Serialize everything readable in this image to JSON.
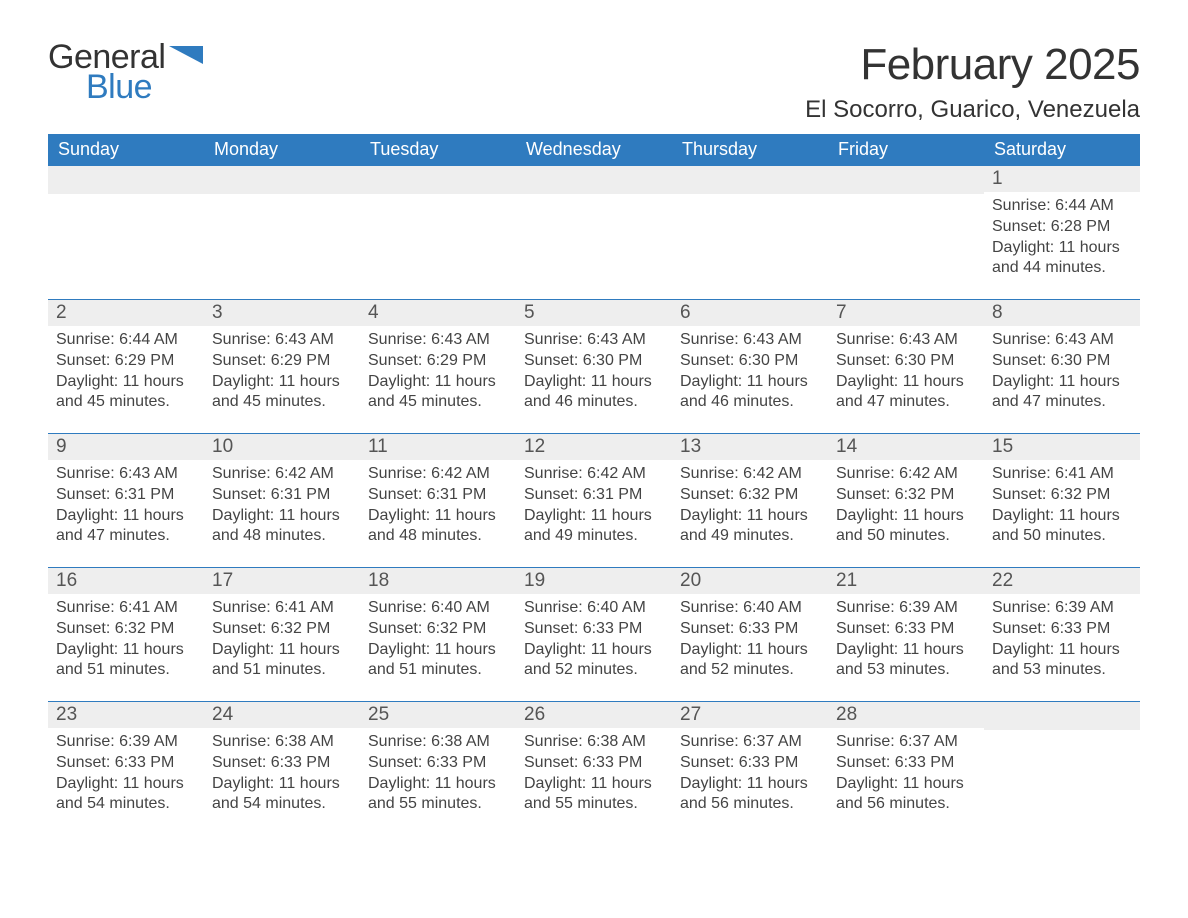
{
  "logo": {
    "text_general": "General",
    "text_blue": "Blue",
    "accent_color": "#2f7bbf"
  },
  "title": "February 2025",
  "location": "El Socorro, Guarico, Venezuela",
  "colors": {
    "header_bg": "#2f7bbf",
    "header_text": "#ffffff",
    "daynum_bg": "#eeeeee",
    "daynum_border": "#2f7bbf",
    "body_text": "#444444",
    "page_bg": "#ffffff"
  },
  "fonts": {
    "title_size_pt": 33,
    "location_size_pt": 18,
    "header_size_pt": 14,
    "body_size_pt": 12
  },
  "weekday_labels": [
    "Sunday",
    "Monday",
    "Tuesday",
    "Wednesday",
    "Thursday",
    "Friday",
    "Saturday"
  ],
  "weeks": [
    [
      null,
      null,
      null,
      null,
      null,
      null,
      {
        "day": 1,
        "sunrise": "6:44 AM",
        "sunset": "6:28 PM",
        "daylight": "11 hours and 44 minutes."
      }
    ],
    [
      {
        "day": 2,
        "sunrise": "6:44 AM",
        "sunset": "6:29 PM",
        "daylight": "11 hours and 45 minutes."
      },
      {
        "day": 3,
        "sunrise": "6:43 AM",
        "sunset": "6:29 PM",
        "daylight": "11 hours and 45 minutes."
      },
      {
        "day": 4,
        "sunrise": "6:43 AM",
        "sunset": "6:29 PM",
        "daylight": "11 hours and 45 minutes."
      },
      {
        "day": 5,
        "sunrise": "6:43 AM",
        "sunset": "6:30 PM",
        "daylight": "11 hours and 46 minutes."
      },
      {
        "day": 6,
        "sunrise": "6:43 AM",
        "sunset": "6:30 PM",
        "daylight": "11 hours and 46 minutes."
      },
      {
        "day": 7,
        "sunrise": "6:43 AM",
        "sunset": "6:30 PM",
        "daylight": "11 hours and 47 minutes."
      },
      {
        "day": 8,
        "sunrise": "6:43 AM",
        "sunset": "6:30 PM",
        "daylight": "11 hours and 47 minutes."
      }
    ],
    [
      {
        "day": 9,
        "sunrise": "6:43 AM",
        "sunset": "6:31 PM",
        "daylight": "11 hours and 47 minutes."
      },
      {
        "day": 10,
        "sunrise": "6:42 AM",
        "sunset": "6:31 PM",
        "daylight": "11 hours and 48 minutes."
      },
      {
        "day": 11,
        "sunrise": "6:42 AM",
        "sunset": "6:31 PM",
        "daylight": "11 hours and 48 minutes."
      },
      {
        "day": 12,
        "sunrise": "6:42 AM",
        "sunset": "6:31 PM",
        "daylight": "11 hours and 49 minutes."
      },
      {
        "day": 13,
        "sunrise": "6:42 AM",
        "sunset": "6:32 PM",
        "daylight": "11 hours and 49 minutes."
      },
      {
        "day": 14,
        "sunrise": "6:42 AM",
        "sunset": "6:32 PM",
        "daylight": "11 hours and 50 minutes."
      },
      {
        "day": 15,
        "sunrise": "6:41 AM",
        "sunset": "6:32 PM",
        "daylight": "11 hours and 50 minutes."
      }
    ],
    [
      {
        "day": 16,
        "sunrise": "6:41 AM",
        "sunset": "6:32 PM",
        "daylight": "11 hours and 51 minutes."
      },
      {
        "day": 17,
        "sunrise": "6:41 AM",
        "sunset": "6:32 PM",
        "daylight": "11 hours and 51 minutes."
      },
      {
        "day": 18,
        "sunrise": "6:40 AM",
        "sunset": "6:32 PM",
        "daylight": "11 hours and 51 minutes."
      },
      {
        "day": 19,
        "sunrise": "6:40 AM",
        "sunset": "6:33 PM",
        "daylight": "11 hours and 52 minutes."
      },
      {
        "day": 20,
        "sunrise": "6:40 AM",
        "sunset": "6:33 PM",
        "daylight": "11 hours and 52 minutes."
      },
      {
        "day": 21,
        "sunrise": "6:39 AM",
        "sunset": "6:33 PM",
        "daylight": "11 hours and 53 minutes."
      },
      {
        "day": 22,
        "sunrise": "6:39 AM",
        "sunset": "6:33 PM",
        "daylight": "11 hours and 53 minutes."
      }
    ],
    [
      {
        "day": 23,
        "sunrise": "6:39 AM",
        "sunset": "6:33 PM",
        "daylight": "11 hours and 54 minutes."
      },
      {
        "day": 24,
        "sunrise": "6:38 AM",
        "sunset": "6:33 PM",
        "daylight": "11 hours and 54 minutes."
      },
      {
        "day": 25,
        "sunrise": "6:38 AM",
        "sunset": "6:33 PM",
        "daylight": "11 hours and 55 minutes."
      },
      {
        "day": 26,
        "sunrise": "6:38 AM",
        "sunset": "6:33 PM",
        "daylight": "11 hours and 55 minutes."
      },
      {
        "day": 27,
        "sunrise": "6:37 AM",
        "sunset": "6:33 PM",
        "daylight": "11 hours and 56 minutes."
      },
      {
        "day": 28,
        "sunrise": "6:37 AM",
        "sunset": "6:33 PM",
        "daylight": "11 hours and 56 minutes."
      },
      null
    ]
  ],
  "labels": {
    "sunrise": "Sunrise: ",
    "sunset": "Sunset: ",
    "daylight": "Daylight: "
  }
}
